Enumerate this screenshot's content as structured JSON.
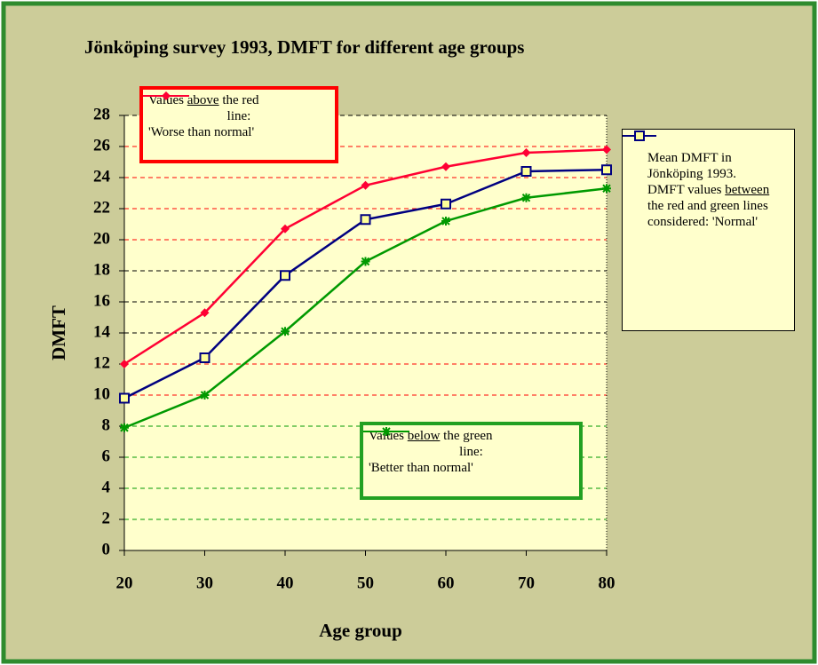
{
  "chart_data": {
    "type": "line",
    "title": "Jönköping survey 1993, DMFT for different age groups",
    "xlabel": "Age group",
    "ylabel": "DMFT",
    "x": [
      20,
      30,
      40,
      50,
      60,
      70,
      80
    ],
    "xlim": [
      20,
      80
    ],
    "xticks": [
      20,
      30,
      40,
      50,
      60,
      70,
      80
    ],
    "ylim": [
      0,
      28
    ],
    "yticks": [
      0,
      2,
      4,
      6,
      8,
      10,
      12,
      14,
      16,
      18,
      20,
      22,
      24,
      26,
      28
    ],
    "grid": true,
    "grid_colors": [
      "#000000",
      "#009900",
      "#009900",
      "#009900",
      "#009900",
      "#ff0000",
      "#ff0000",
      "#000000",
      "#000000",
      "#000000",
      "#ff0000",
      "#ff0000",
      "#ff0000",
      "#ff0000",
      "#000000"
    ],
    "series": [
      {
        "color": "#ff0033",
        "marker": "diamond",
        "values": [
          12,
          15.3,
          20.7,
          23.5,
          24.7,
          25.6,
          25.8
        ],
        "note": [
          "Values ",
          "above",
          " the red",
          "line:",
          "'Worse than normal'"
        ]
      },
      {
        "color": "#000080",
        "marker": "square",
        "values": [
          9.8,
          12.4,
          17.7,
          21.3,
          22.3,
          24.4,
          24.5
        ],
        "note": [
          "Mean DMFT in Jönköping 1993.",
          "DMFT values ",
          "between",
          " the red and green lines considered: 'Normal'"
        ]
      },
      {
        "color": "#009900",
        "marker": "star",
        "values": [
          7.9,
          10,
          14.1,
          18.6,
          21.2,
          22.7,
          23.3
        ],
        "note": [
          "Values ",
          "below",
          " the green",
          "line:",
          "'Better than normal'"
        ]
      }
    ]
  }
}
